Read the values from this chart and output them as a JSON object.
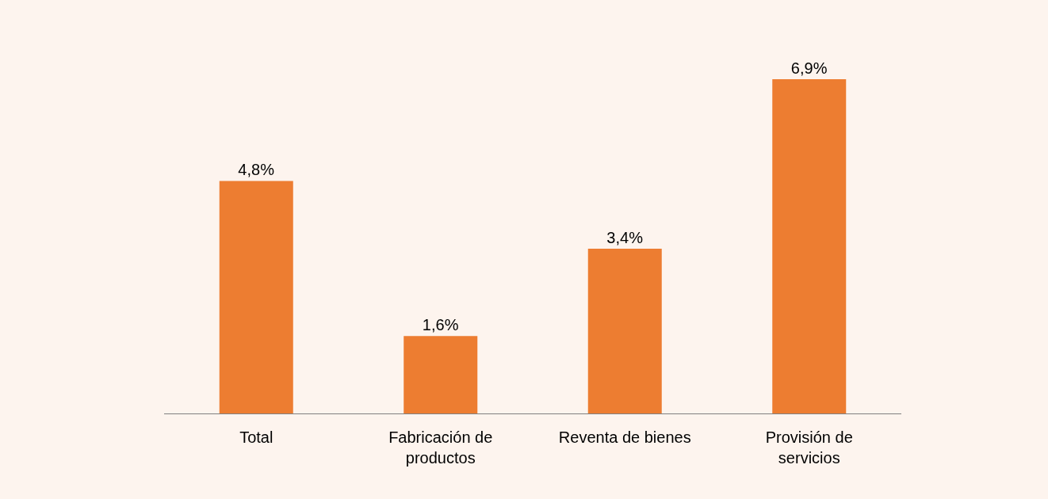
{
  "chart_data": {
    "type": "bar",
    "categories": [
      "Total",
      "Fabricación de productos",
      "Reventa de bienes",
      "Provisión de servicios"
    ],
    "values": [
      4.8,
      1.6,
      3.4,
      6.9
    ],
    "value_labels": [
      "4,8%",
      "1,6%",
      "3,4%",
      "6,9%"
    ],
    "color": "#ed7d31"
  }
}
